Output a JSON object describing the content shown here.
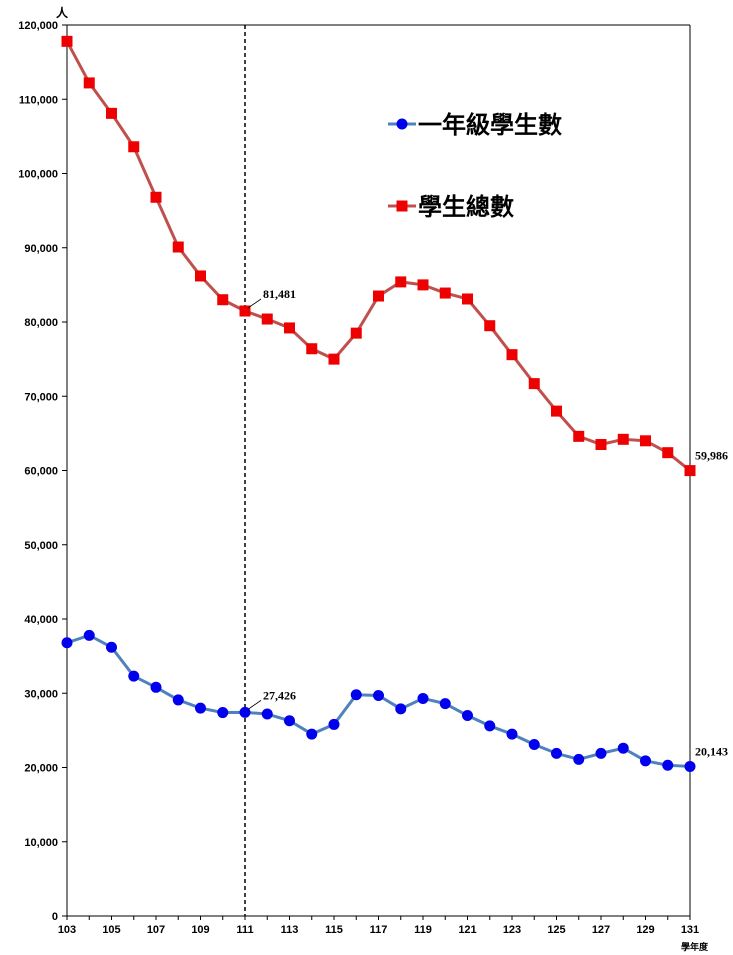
{
  "chart_data": {
    "type": "line",
    "y_unit": "人",
    "x_unit": "學年度",
    "x": [
      103,
      104,
      105,
      106,
      107,
      108,
      109,
      110,
      111,
      112,
      113,
      114,
      115,
      116,
      117,
      118,
      119,
      120,
      121,
      122,
      123,
      124,
      125,
      126,
      127,
      128,
      129,
      130,
      131
    ],
    "x_tick_labels": [
      "103",
      "105",
      "107",
      "109",
      "111",
      "113",
      "115",
      "117",
      "119",
      "121",
      "123",
      "125",
      "127",
      "129",
      "131"
    ],
    "ylim": [
      0,
      120000
    ],
    "y_tick_labels": [
      "0",
      "10,000",
      "20,000",
      "30,000",
      "40,000",
      "50,000",
      "60,000",
      "70,000",
      "80,000",
      "90,000",
      "100,000",
      "110,000",
      "120,000"
    ],
    "grid": false,
    "legend_position": "top-right",
    "reference_line_x": 111,
    "series": [
      {
        "name": "一年級學生數",
        "color": "#4F81BD",
        "marker_color": "#0000EE",
        "marker": "circle",
        "values": [
          36800,
          37800,
          36200,
          32300,
          30800,
          29100,
          28000,
          27400,
          27426,
          27200,
          26300,
          24500,
          25800,
          29800,
          29700,
          27900,
          29300,
          28600,
          27000,
          25600,
          24500,
          23100,
          21900,
          21100,
          21900,
          22600,
          20900,
          20300,
          20143
        ]
      },
      {
        "name": "學生總數",
        "color": "#C0504D",
        "marker_color": "#EE0000",
        "marker": "square",
        "values": [
          117800,
          112200,
          108100,
          103600,
          96800,
          90100,
          86200,
          83000,
          81481,
          80400,
          79200,
          76400,
          75000,
          78500,
          83500,
          85400,
          85000,
          83900,
          83100,
          79500,
          75600,
          71700,
          68000,
          64600,
          63500,
          64200,
          64000,
          62400,
          59986
        ]
      }
    ],
    "annotations": [
      {
        "x": 111,
        "series": 1,
        "label": "81,481"
      },
      {
        "x": 131,
        "series": 1,
        "label": "59,986"
      },
      {
        "x": 111,
        "series": 0,
        "label": "27,426"
      },
      {
        "x": 131,
        "series": 0,
        "label": "20,143"
      }
    ]
  }
}
